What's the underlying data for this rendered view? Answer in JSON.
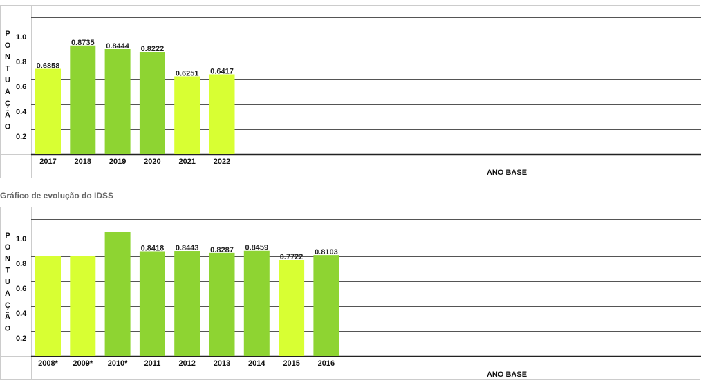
{
  "section_title": "Gráfico de evolução do IDSS",
  "colors": {
    "light_bar": "#d8ff33",
    "dark_bar": "#8ed432",
    "grid": "#555555",
    "frame": "#cccccc"
  },
  "chart_data": [
    {
      "type": "bar",
      "ylabel": "PONTUAÇÃO",
      "xlabel": "ANO BASE",
      "ylim": [
        0,
        1.1
      ],
      "yticks": [
        "0.2",
        "0.4",
        "0.6",
        "0.8",
        "1.0"
      ],
      "categories": [
        "2017",
        "2018",
        "2019",
        "2020",
        "2021",
        "2022"
      ],
      "values": [
        0.6858,
        0.8735,
        0.8444,
        0.8222,
        0.6251,
        0.6417
      ],
      "labels": [
        "0.6858",
        "0.8735",
        "0.8444",
        "0.8222",
        "0.6251",
        "0.6417"
      ],
      "bar_colors": [
        "light",
        "dark",
        "dark",
        "dark",
        "light",
        "light"
      ],
      "grid": true
    },
    {
      "type": "bar",
      "ylabel": "PONTUAÇÃO",
      "xlabel": "ANO BASE",
      "ylim": [
        0,
        1.1
      ],
      "yticks": [
        "0.2",
        "0.4",
        "0.6",
        "0.8",
        "1.0"
      ],
      "categories": [
        "2008*",
        "2009*",
        "2010*",
        "2011",
        "2012",
        "2013",
        "2014",
        "2015",
        "2016"
      ],
      "values": [
        0.8,
        0.8,
        1.0,
        0.8418,
        0.8443,
        0.8287,
        0.8459,
        0.7722,
        0.8103
      ],
      "labels": [
        "",
        "",
        "",
        "0.8418",
        "0.8443",
        "0.8287",
        "0.8459",
        "0.7722",
        "0.8103"
      ],
      "bar_colors": [
        "light",
        "light",
        "dark",
        "dark",
        "dark",
        "dark",
        "dark",
        "light",
        "dark"
      ],
      "grid": true
    }
  ]
}
